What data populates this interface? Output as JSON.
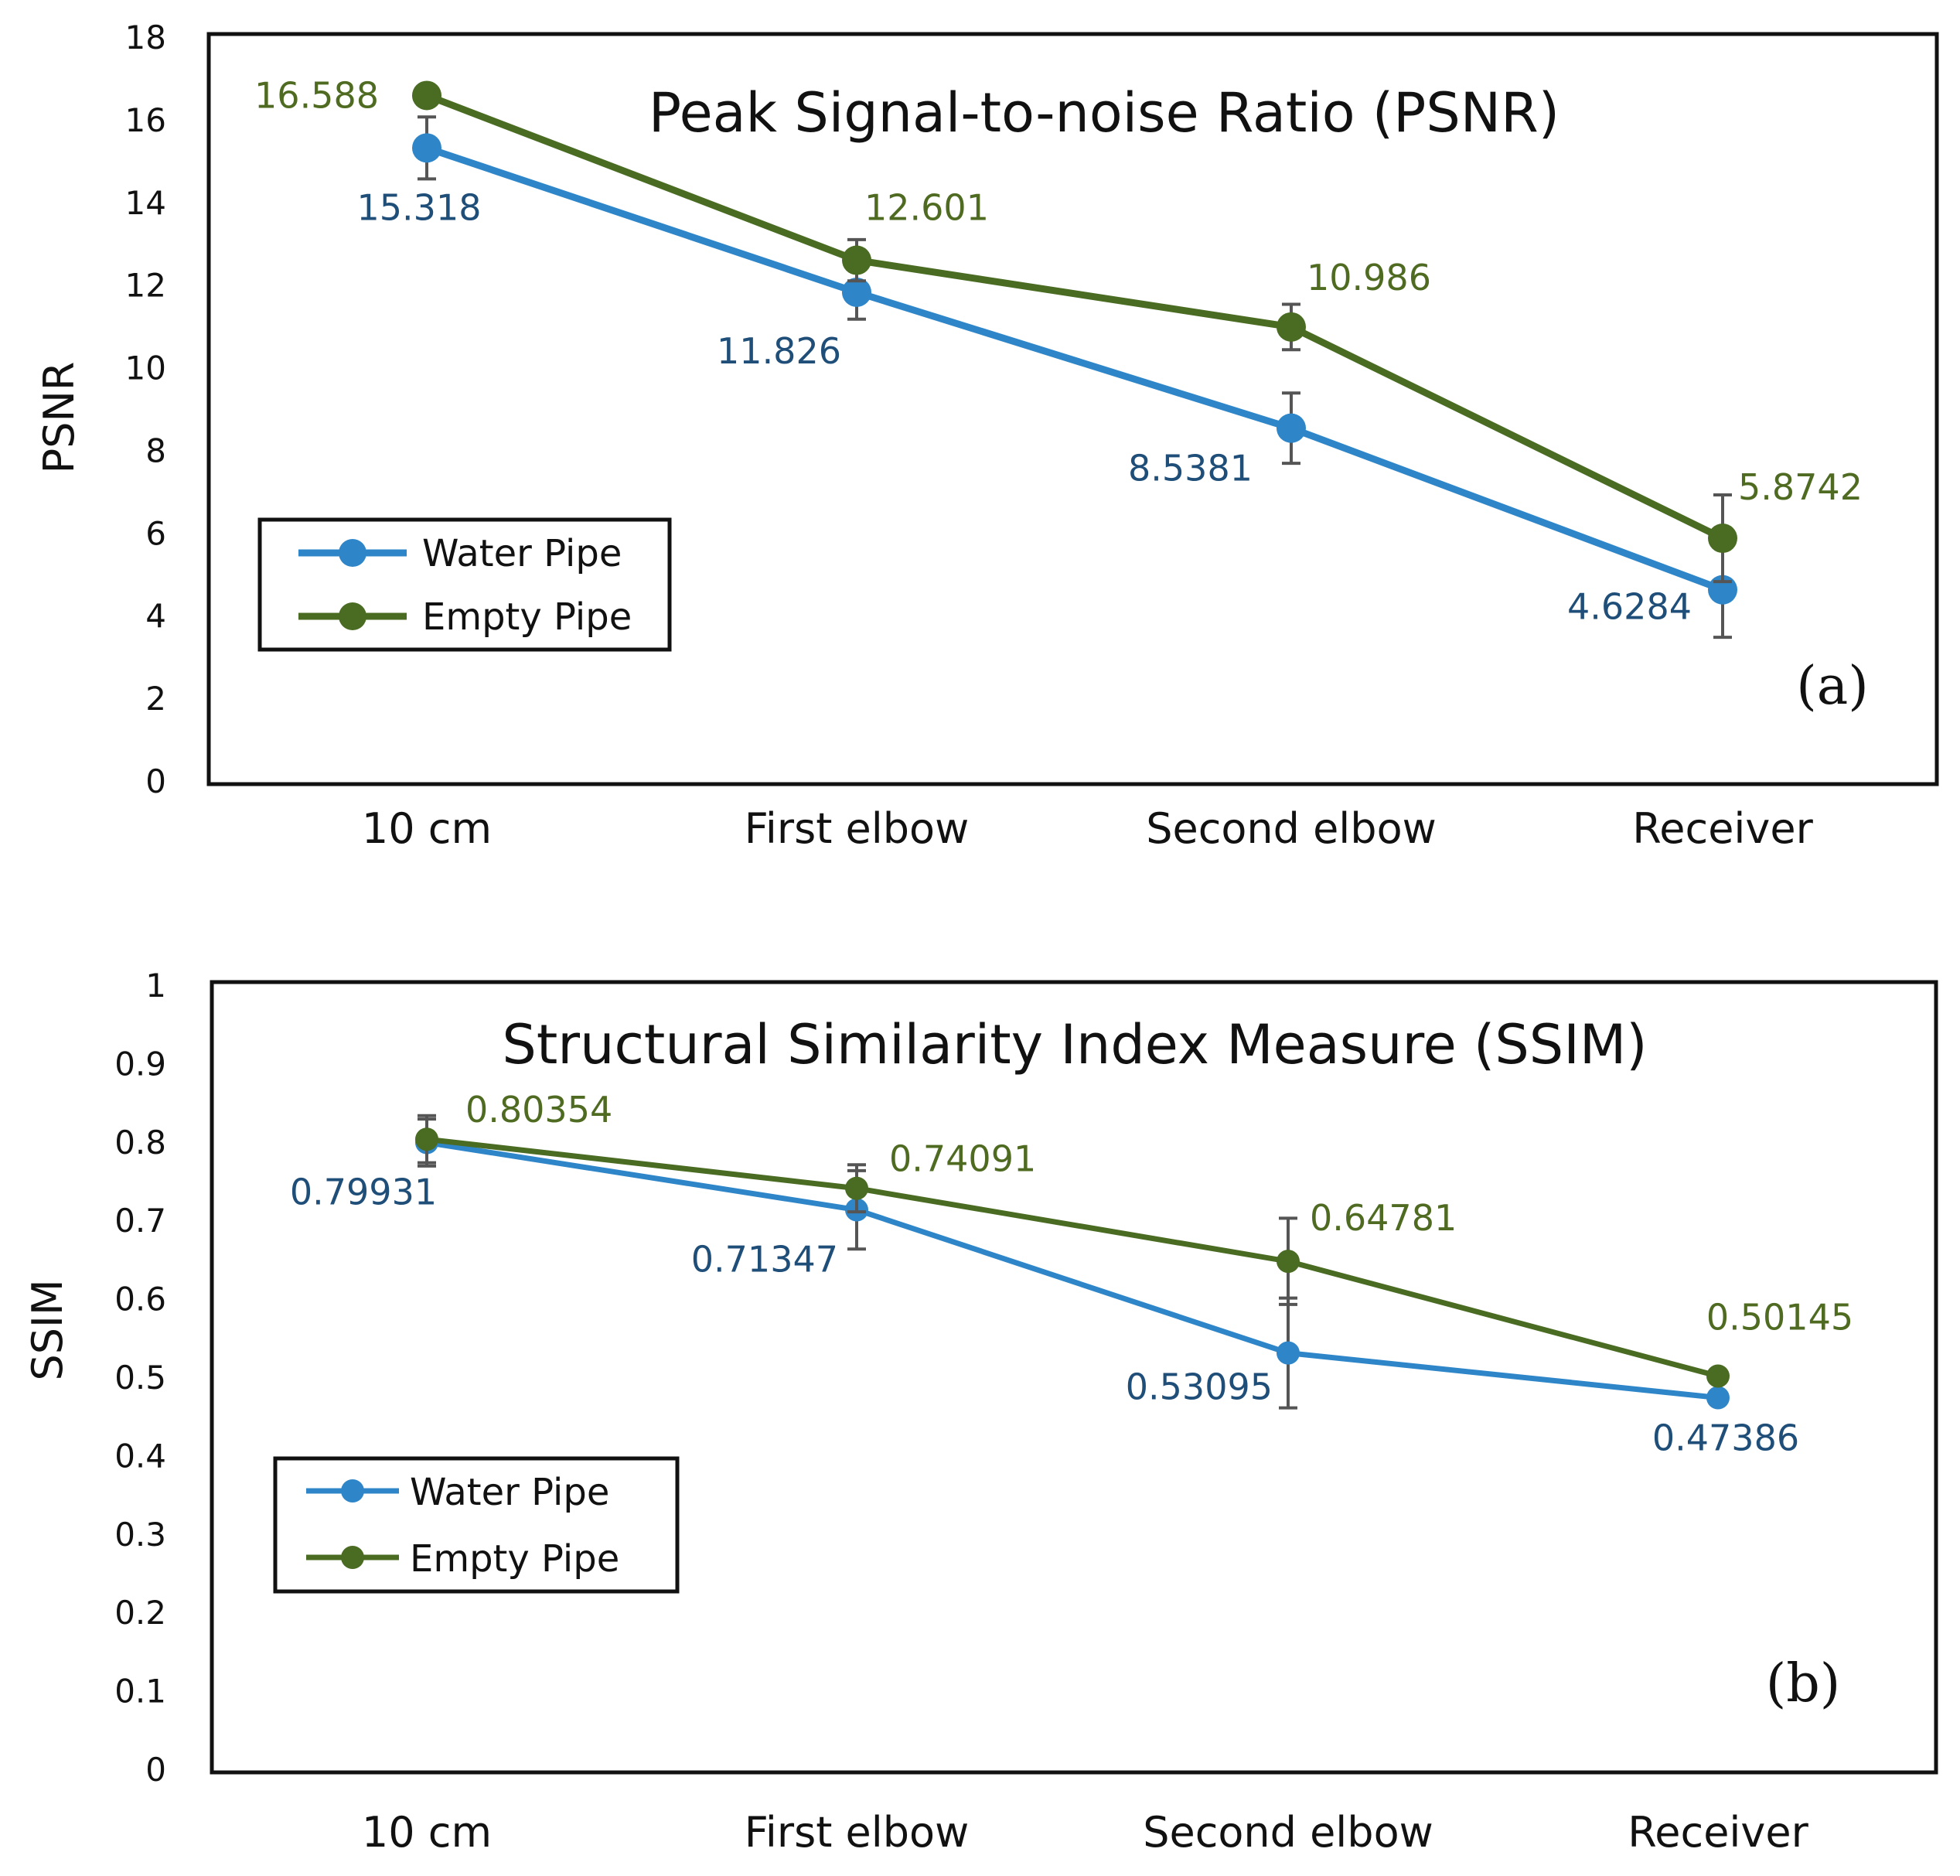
{
  "colors": {
    "water": "#2e86c9",
    "empty": "#4a6b22",
    "water_label": "#1f4e79",
    "empty_label": "#4f6b22",
    "error_bar": "#555555",
    "frame": "#111111"
  },
  "chart_data": [
    {
      "type": "line",
      "title": "Peak Signal-to-noise Ratio (PSNR)",
      "ylabel": "PSNR",
      "xlabel": "",
      "panel_label": "(a)",
      "categories": [
        "10 cm",
        "First elbow",
        "Second elbow",
        "Receiver"
      ],
      "ylim": [
        0,
        18
      ],
      "yticks": [
        0,
        2,
        4,
        6,
        8,
        10,
        12,
        14,
        16,
        18
      ],
      "ytick_labels": [
        "0",
        "2",
        "4",
        "6",
        "8",
        "10",
        "12",
        "14",
        "16",
        "18"
      ],
      "legend_position": "bottom-left",
      "series": [
        {
          "name": "Water Pipe",
          "color_key": "water",
          "values": [
            15.318,
            11.826,
            8.5381,
            4.6284
          ],
          "labels": [
            "15.318",
            "11.826",
            "8.5381",
            "4.6284"
          ],
          "errors": [
            0.75,
            0.65,
            0.85,
            1.15
          ]
        },
        {
          "name": "Empty Pipe",
          "color_key": "empty",
          "values": [
            16.588,
            12.601,
            10.986,
            5.8742
          ],
          "labels": [
            "16.588",
            "12.601",
            "10.986",
            "5.8742"
          ],
          "errors": [
            0,
            0.5,
            0.55,
            1.05
          ]
        }
      ]
    },
    {
      "type": "line",
      "title": "Structural Similarity Index Measure (SSIM)",
      "ylabel": "SSIM",
      "xlabel": "",
      "panel_label": "(b)",
      "categories": [
        "10 cm",
        "First elbow",
        "Second elbow",
        "Receiver"
      ],
      "ylim": [
        0,
        1
      ],
      "yticks": [
        0,
        0.1,
        0.2,
        0.3,
        0.4,
        0.5,
        0.6,
        0.7,
        0.8,
        0.9,
        1
      ],
      "ytick_labels": [
        "0",
        "0.1",
        "0.2",
        "0.3",
        "0.4",
        "0.5",
        "0.6",
        "0.7",
        "0.8",
        "0.9",
        "1"
      ],
      "legend_position": "bottom-left",
      "series": [
        {
          "name": "Water Pipe",
          "color_key": "water",
          "values": [
            0.79931,
            0.71347,
            0.53095,
            0.47386
          ],
          "labels": [
            "0.79931",
            "0.71347",
            "0.53095",
            "0.47386"
          ],
          "errors": [
            0.03,
            0.05,
            0.07,
            0
          ]
        },
        {
          "name": "Empty Pipe",
          "color_key": "empty",
          "values": [
            0.80354,
            0.74091,
            0.64781,
            0.50145
          ],
          "labels": [
            "0.80354",
            "0.74091",
            "0.64781",
            "0.50145"
          ],
          "errors": [
            0.03,
            0.03,
            0.055,
            0
          ]
        }
      ]
    }
  ]
}
